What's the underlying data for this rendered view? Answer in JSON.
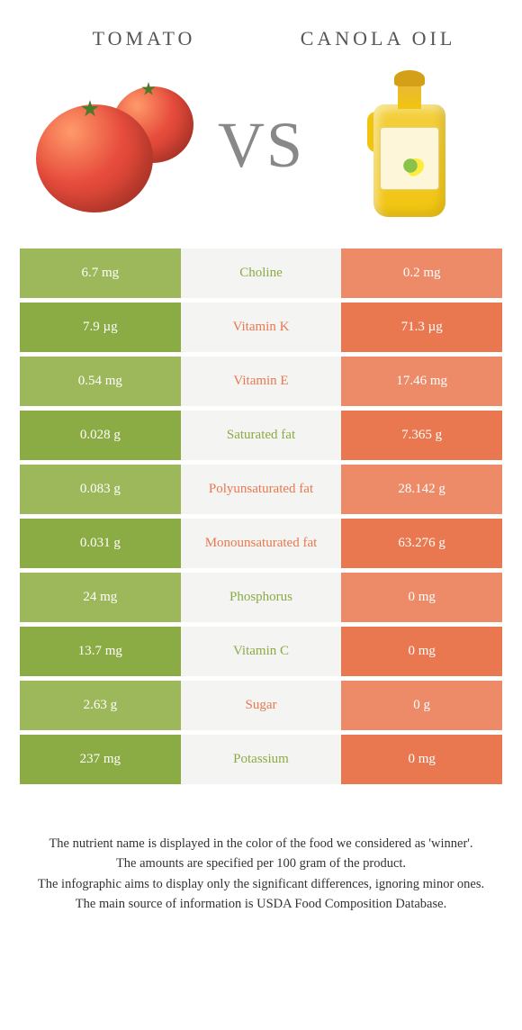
{
  "header": {
    "left_title": "TOMATO",
    "right_title": "CANOLA OIL",
    "vs": "VS"
  },
  "colors": {
    "tomato_even": "#9cb85a",
    "tomato_odd": "#8bab44",
    "canola_even": "#ed8b68",
    "canola_odd": "#e97850",
    "mid_bg": "#f4f4f2",
    "tomato_text": "#8bab44",
    "canola_text": "#e97850",
    "page_bg": "#ffffff"
  },
  "rows": [
    {
      "left": "6.7 mg",
      "label": "Choline",
      "right": "0.2 mg",
      "winner": "tomato"
    },
    {
      "left": "7.9 µg",
      "label": "Vitamin K",
      "right": "71.3 µg",
      "winner": "canola"
    },
    {
      "left": "0.54 mg",
      "label": "Vitamin E",
      "right": "17.46 mg",
      "winner": "canola"
    },
    {
      "left": "0.028 g",
      "label": "Saturated fat",
      "right": "7.365 g",
      "winner": "tomato"
    },
    {
      "left": "0.083 g",
      "label": "Polyunsaturated fat",
      "right": "28.142 g",
      "winner": "canola"
    },
    {
      "left": "0.031 g",
      "label": "Monounsaturated fat",
      "right": "63.276 g",
      "winner": "canola"
    },
    {
      "left": "24 mg",
      "label": "Phosphorus",
      "right": "0 mg",
      "winner": "tomato"
    },
    {
      "left": "13.7 mg",
      "label": "Vitamin C",
      "right": "0 mg",
      "winner": "tomato"
    },
    {
      "left": "2.63 g",
      "label": "Sugar",
      "right": "0 g",
      "winner": "canola"
    },
    {
      "left": "237 mg",
      "label": "Potassium",
      "right": "0 mg",
      "winner": "tomato"
    }
  ],
  "footnotes": [
    "The nutrient name is displayed in the color of the food we considered as 'winner'.",
    "The amounts are specified per 100 gram of the product.",
    "The infographic aims to display only the significant differences, ignoring minor ones.",
    "The main source of information is USDA Food Composition Database."
  ]
}
